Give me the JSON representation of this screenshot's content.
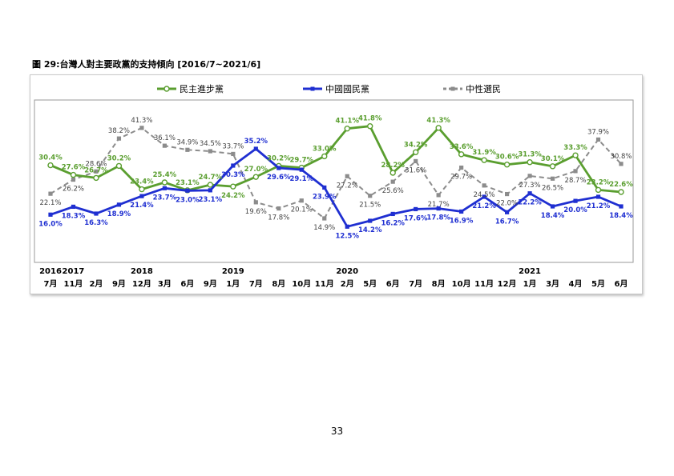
{
  "document": {
    "figure_title": "圖 29:台灣人對主要政黨的支持傾向 [2016/7~2021/6]",
    "page_number": "33"
  },
  "chart_data": {
    "type": "line",
    "title": "",
    "xlabel": "",
    "ylabel": "",
    "ylim": [
      10,
      45
    ],
    "grid": false,
    "legend_position": "top",
    "x_year_labels": [
      {
        "index": 0,
        "label": "2016"
      },
      {
        "index": 1,
        "label": "2017"
      },
      {
        "index": 4,
        "label": "2018"
      },
      {
        "index": 8,
        "label": "2019"
      },
      {
        "index": 13,
        "label": "2020"
      },
      {
        "index": 21,
        "label": "2021"
      }
    ],
    "categories": [
      "7月",
      "11月",
      "2月",
      "9月",
      "12月",
      "3月",
      "6月",
      "9月",
      "1月",
      "7月",
      "8月",
      "10月",
      "11月",
      "2月",
      "5月",
      "6月",
      "7月",
      "8月",
      "10月",
      "11月",
      "12月",
      "1月",
      "3月",
      "4月",
      "5月",
      "6月"
    ],
    "series": [
      {
        "name": "民主進步黨",
        "color": "#5a9e2f",
        "marker": "circle",
        "dash": false,
        "values": [
          30.4,
          27.6,
          26.7,
          30.2,
          23.4,
          25.4,
          23.1,
          24.7,
          24.2,
          27.0,
          30.2,
          29.7,
          33.0,
          41.1,
          41.8,
          28.2,
          34.2,
          41.3,
          33.6,
          31.9,
          30.6,
          31.3,
          30.1,
          33.3,
          23.2,
          22.6
        ],
        "labels": [
          "30.4%",
          "27.6%",
          "26.7%",
          "30.2%",
          "23.4%",
          "25.4%",
          "23.1%",
          "24.7%",
          "24.2%",
          "27.0%",
          "30.2%",
          "29.7%",
          "33.0%",
          "41.1%",
          "41.8%",
          "28.2%",
          "34.2%",
          "41.3%",
          "33.6%",
          "31.9%",
          "30.6%",
          "31.3%",
          "30.1%",
          "33.3%",
          "23.2%",
          "22.6%"
        ]
      },
      {
        "name": "中國國民黨",
        "color": "#1f2fd1",
        "marker": "square",
        "dash": false,
        "values": [
          16.0,
          18.3,
          16.3,
          18.9,
          21.4,
          23.7,
          23.0,
          23.1,
          30.3,
          35.2,
          29.6,
          29.1,
          23.9,
          12.5,
          14.2,
          16.2,
          17.6,
          17.8,
          16.9,
          21.2,
          16.7,
          22.2,
          18.4,
          20.0,
          21.2,
          18.4
        ],
        "labels": [
          "16.0%",
          "18.3%",
          "16.3%",
          "18.9%",
          "21.4%",
          "23.7%",
          "23.0%",
          "23.1%",
          "30.3%",
          "35.2%",
          "29.6%",
          "29.1%",
          "23.9%",
          "12.5%",
          "14.2%",
          "16.2%",
          "17.6%",
          "17.8%",
          "16.9%",
          "21.2%",
          "16.7%",
          "22.2%",
          "18.4%",
          "20.0%",
          "21.2%",
          "18.4%"
        ]
      },
      {
        "name": "中性選民",
        "color": "#8c8c8c",
        "marker": "square",
        "dash": true,
        "values": [
          22.1,
          26.2,
          28.6,
          38.2,
          41.3,
          36.1,
          34.9,
          34.5,
          33.7,
          19.6,
          17.8,
          20.1,
          14.9,
          27.2,
          21.5,
          25.6,
          31.6,
          21.7,
          29.7,
          24.5,
          22.0,
          27.3,
          26.5,
          28.7,
          37.9,
          30.8
        ],
        "labels": [
          "22.1%",
          "26.2%",
          "28.6%",
          "38.2%",
          "41.3%",
          "36.1%",
          "34.9%",
          "34.5%",
          "33.7%",
          "19.6%",
          "17.8%",
          "20.1%",
          "14.9%",
          "27.2%",
          "21.5%",
          "25.6%",
          "31.6%",
          "21.7%",
          "29.7%",
          "24.5%",
          "22.0%",
          "27.3%",
          "26.5%",
          "28.7%",
          "37.9%",
          "30.8%"
        ]
      }
    ]
  }
}
